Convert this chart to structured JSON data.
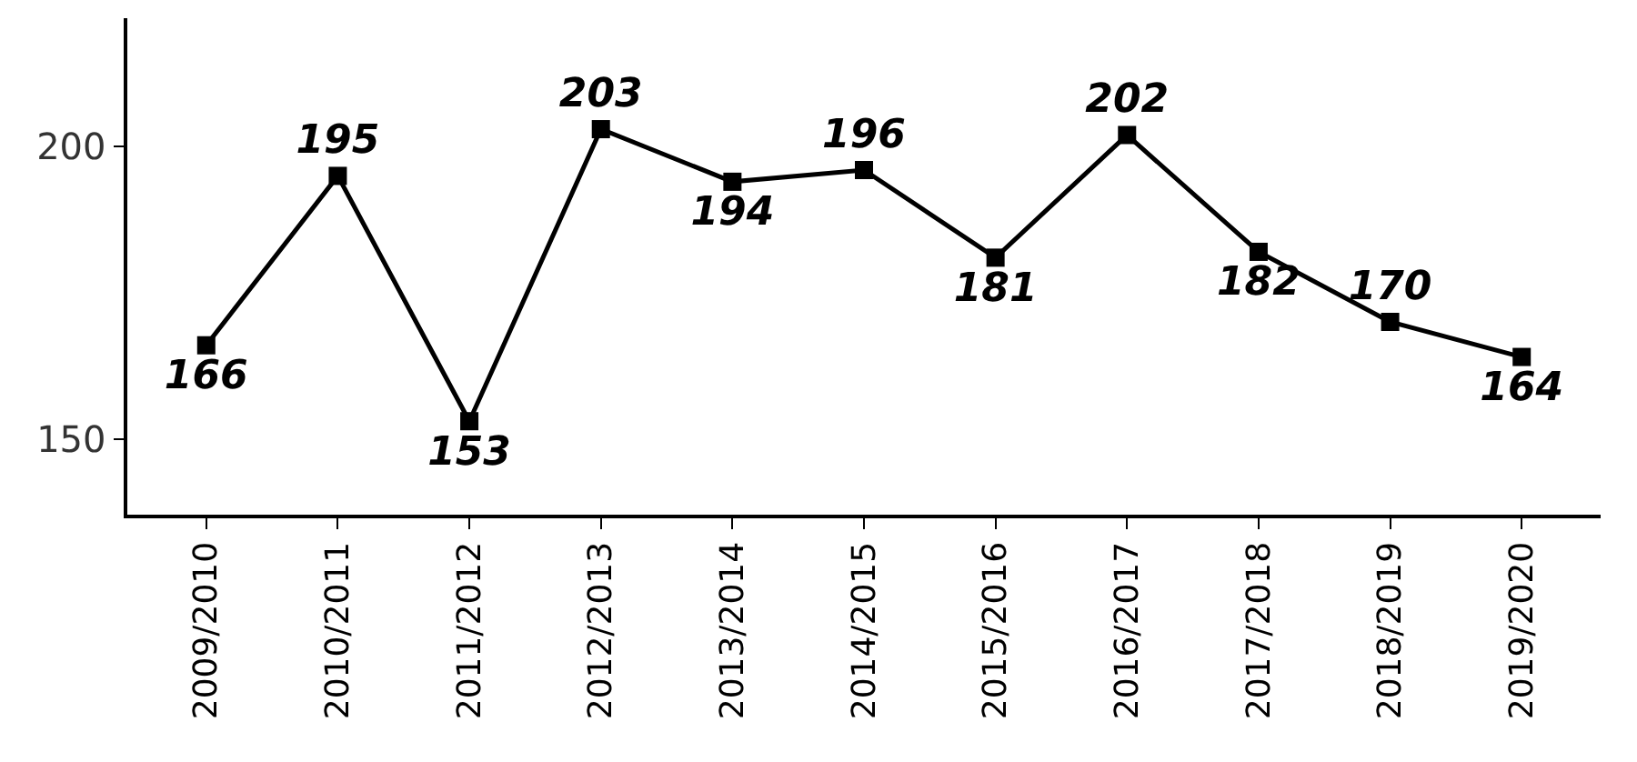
{
  "chart_data": {
    "type": "line",
    "categories": [
      "2009/2010",
      "2010/2011",
      "2011/2012",
      "2012/2013",
      "2013/2014",
      "2014/2015",
      "2015/2016",
      "2016/2017",
      "2017/2018",
      "2018/2019",
      "2019/2020"
    ],
    "series": [
      {
        "color": "#000000",
        "values": [
          166,
          195,
          153,
          203,
          194,
          196,
          181,
          202,
          182,
          170,
          164
        ]
      }
    ],
    "ylim": [
      137,
      222
    ],
    "yticks": [
      150,
      200
    ],
    "legend": false,
    "marker": "square",
    "line_style": "solid",
    "data_labels": true
  }
}
